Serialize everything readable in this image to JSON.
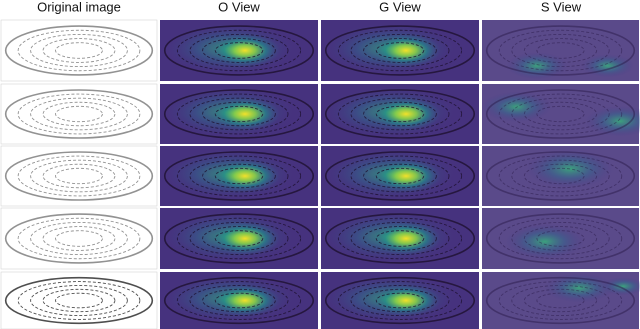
{
  "headers": [
    "Original image",
    "O View",
    "G View",
    "S View"
  ]
}
